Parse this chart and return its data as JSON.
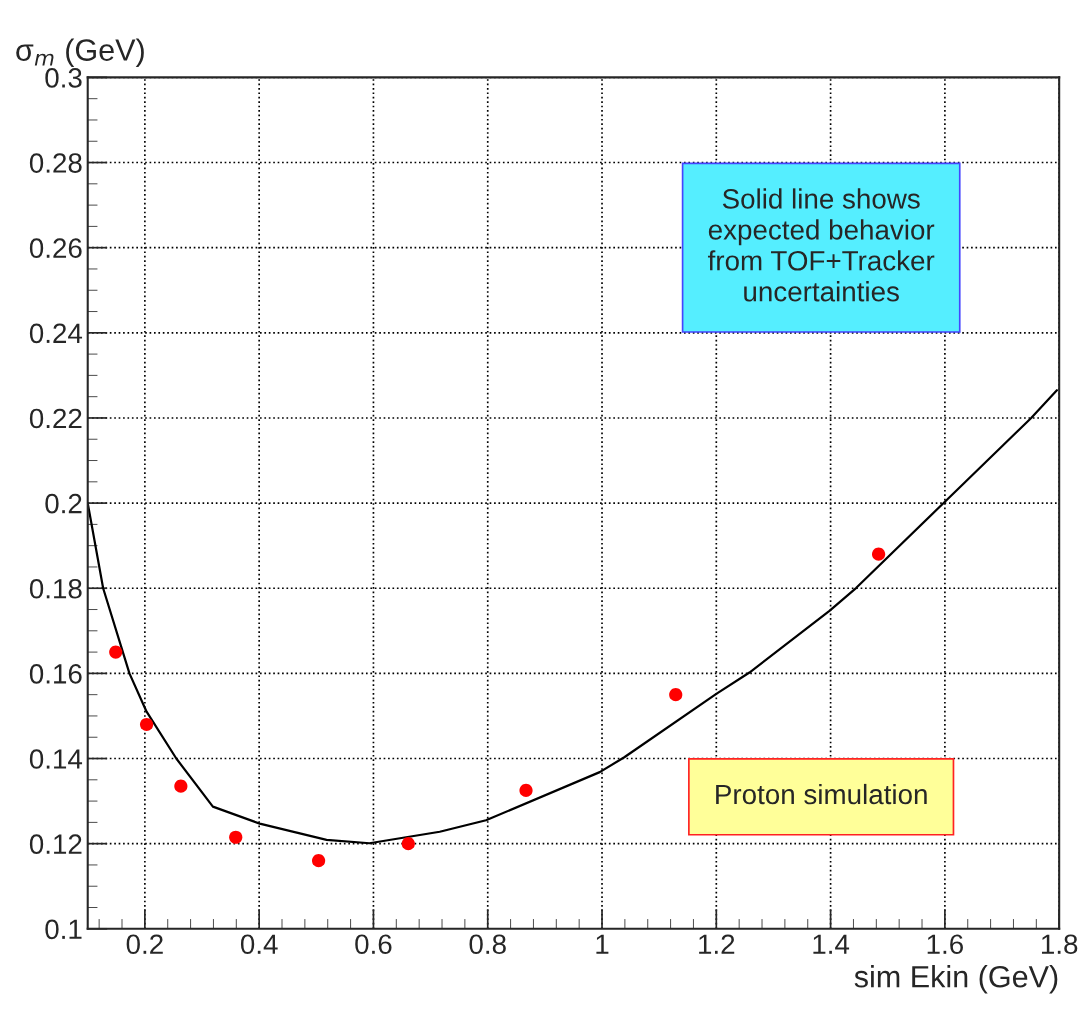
{
  "chart_data": {
    "type": "scatter",
    "xlabel": "sim Ekin (GeV)",
    "ylabel": "σ$_{m}$ (GeV)",
    "xlim": [
      0.1,
      1.8
    ],
    "ylim": [
      0.1,
      0.3
    ],
    "xticks": [
      0.2,
      0.4,
      0.6,
      0.8,
      1,
      1.2,
      1.4,
      1.6,
      1.8
    ],
    "yticks": [
      0.1,
      0.12,
      0.14,
      0.16,
      0.18,
      0.2,
      0.22,
      0.24,
      0.26,
      0.28,
      0.3
    ],
    "grid": true,
    "series": [
      {
        "marker": "circle",
        "color": "#ff0000",
        "x": [
          0.149,
          0.203,
          0.263,
          0.359,
          0.504,
          0.661,
          0.867,
          1.129,
          1.484
        ],
        "values": [
          0.165,
          0.148,
          0.1335,
          0.1215,
          0.116,
          0.12,
          0.1325,
          0.155,
          0.188
        ]
      },
      {
        "type": "line",
        "color": "#000000",
        "line_style": "solid",
        "x": [
          0.1,
          0.127,
          0.173,
          0.203,
          0.255,
          0.319,
          0.401,
          0.518,
          0.593,
          0.716,
          0.797,
          0.996,
          1.039,
          1.2,
          1.258,
          1.398,
          1.445,
          1.596,
          1.751,
          1.796
        ],
        "values": [
          0.2,
          0.18,
          0.16,
          0.151,
          0.14,
          0.1287,
          0.1247,
          0.1209,
          0.1201,
          0.1228,
          0.1255,
          0.1368,
          0.1403,
          0.1552,
          0.1602,
          0.1747,
          0.1801,
          0.1998,
          0.22,
          0.2265
        ]
      }
    ],
    "annotations": [
      "Solid line shows\nexpected behavior\nfrom TOF+Tracker\nuncertainties",
      "Proton simulation"
    ]
  }
}
